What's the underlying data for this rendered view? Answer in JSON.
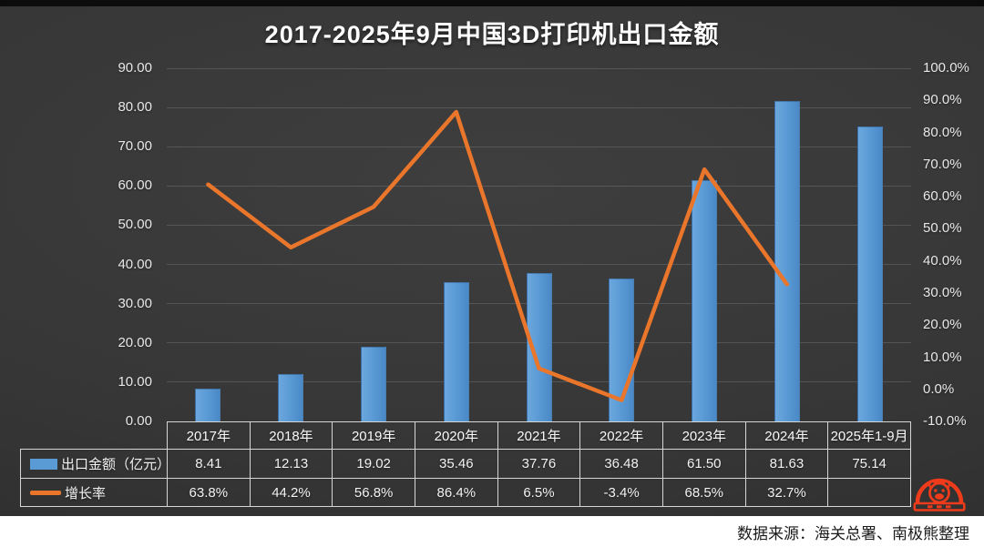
{
  "header": {
    "title": "2017-2025年9月中国3D打印机出口金额"
  },
  "footer": {
    "source_note": "数据来源：海关总署、南极熊整理",
    "logo": "nanjixiong-bear-logo"
  },
  "chart_data": {
    "type": "combo-bar-line",
    "title": "2017-2025年9月中国3D打印机出口金额",
    "categories": [
      "2017年",
      "2018年",
      "2019年",
      "2020年",
      "2021年",
      "2022年",
      "2023年",
      "2024年",
      "2025年1-9月"
    ],
    "series": [
      {
        "name": "出口金额（亿元）",
        "type": "bar",
        "axis": "left",
        "color": "#5B9BD5",
        "values": [
          8.41,
          12.13,
          19.02,
          35.46,
          37.76,
          36.48,
          61.5,
          81.63,
          75.14
        ]
      },
      {
        "name": "增长率",
        "type": "line",
        "axis": "right",
        "color": "#E9762B",
        "values": [
          63.8,
          44.2,
          56.8,
          86.4,
          6.5,
          -3.4,
          68.5,
          32.7,
          null
        ]
      }
    ],
    "left_axis": {
      "min": 0,
      "max": 90,
      "step": 10,
      "ticks": [
        "0.00",
        "10.00",
        "20.00",
        "30.00",
        "40.00",
        "50.00",
        "60.00",
        "70.00",
        "80.00",
        "90.00"
      ]
    },
    "right_axis": {
      "min": -10,
      "max": 100,
      "step": 10,
      "ticks": [
        "-10.0%",
        "0.0%",
        "10.0%",
        "20.0%",
        "30.0%",
        "40.0%",
        "50.0%",
        "60.0%",
        "70.0%",
        "80.0%",
        "90.0%",
        "100.0%"
      ]
    },
    "grid": "horizontal",
    "legend_position": "table-left",
    "data_table": {
      "rows": [
        {
          "label": "出口金额（亿元）",
          "swatch": "bar",
          "cells": [
            "8.41",
            "12.13",
            "19.02",
            "35.46",
            "37.76",
            "36.48",
            "61.50",
            "81.63",
            "75.14"
          ]
        },
        {
          "label": "增长率",
          "swatch": "line",
          "cells": [
            "63.8%",
            "44.2%",
            "56.8%",
            "86.4%",
            "6.5%",
            "-3.4%",
            "68.5%",
            "32.7%",
            ""
          ]
        }
      ]
    }
  }
}
